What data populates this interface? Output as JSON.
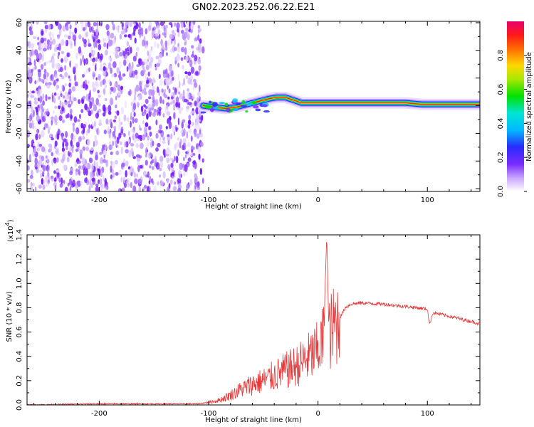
{
  "title": "GN02.2023.252.06.22.E21",
  "chart_data": [
    {
      "type": "heatmap",
      "xlabel": "Height of straight line (km)",
      "ylabel": "Frequency (Hz)",
      "xlim": [
        -266,
        148
      ],
      "ylim": [
        -62,
        61
      ],
      "xticks": [
        -200,
        -100,
        0,
        100
      ],
      "yticks": [
        -60,
        -40,
        -20,
        0,
        20,
        40,
        60
      ],
      "noise_region_x": [
        -266,
        -105
      ],
      "signal_band": [
        {
          "x": -105,
          "y": 0
        },
        {
          "x": -95,
          "y": -1
        },
        {
          "x": -85,
          "y": -2
        },
        {
          "x": -75,
          "y": -1
        },
        {
          "x": -65,
          "y": 1
        },
        {
          "x": -55,
          "y": 3
        },
        {
          "x": -45,
          "y": 5
        },
        {
          "x": -38,
          "y": 6
        },
        {
          "x": -30,
          "y": 6
        },
        {
          "x": -22,
          "y": 4
        },
        {
          "x": -15,
          "y": 2
        },
        {
          "x": -5,
          "y": 2
        },
        {
          "x": 10,
          "y": 2
        },
        {
          "x": 40,
          "y": 2
        },
        {
          "x": 80,
          "y": 2
        },
        {
          "x": 95,
          "y": 1
        },
        {
          "x": 148,
          "y": 1
        }
      ],
      "colorbar": {
        "label": "Normalized spectral amplitude",
        "range": [
          0,
          1
        ],
        "ticks": [
          "0.0",
          "0.2",
          "0.4",
          "0.6",
          "0.8"
        ]
      }
    },
    {
      "type": "line",
      "xlabel": "Height of straight line (km)",
      "ylabel": "SNR (10 * v/v)",
      "exponent_label": "(x10",
      "exponent_power": "4",
      "exponent_close": ")",
      "xlim": [
        -266,
        148
      ],
      "ylim": [
        0,
        1.4
      ],
      "xticks": [
        -200,
        -100,
        0,
        100
      ],
      "yticks": [
        "0.0",
        "0.2",
        "0.4",
        "0.6",
        "0.8",
        "1.0",
        "1.2",
        "1.4"
      ],
      "color": "#e8383a",
      "series": [
        {
          "x": [
            -266,
            -200,
            -150,
            -110,
            -100,
            -90,
            -80,
            -70,
            -60,
            -50,
            -40,
            -30,
            -20,
            -10,
            0,
            5,
            8,
            10,
            15,
            20,
            25,
            30,
            40,
            60,
            80,
            100,
            102,
            105,
            120,
            148
          ],
          "y": [
            0.0,
            0.01,
            0.01,
            0.01,
            0.02,
            0.04,
            0.08,
            0.13,
            0.17,
            0.2,
            0.24,
            0.28,
            0.32,
            0.38,
            0.45,
            0.55,
            1.4,
            0.58,
            0.65,
            0.72,
            0.8,
            0.83,
            0.84,
            0.83,
            0.81,
            0.79,
            0.66,
            0.76,
            0.73,
            0.67
          ]
        }
      ]
    }
  ]
}
